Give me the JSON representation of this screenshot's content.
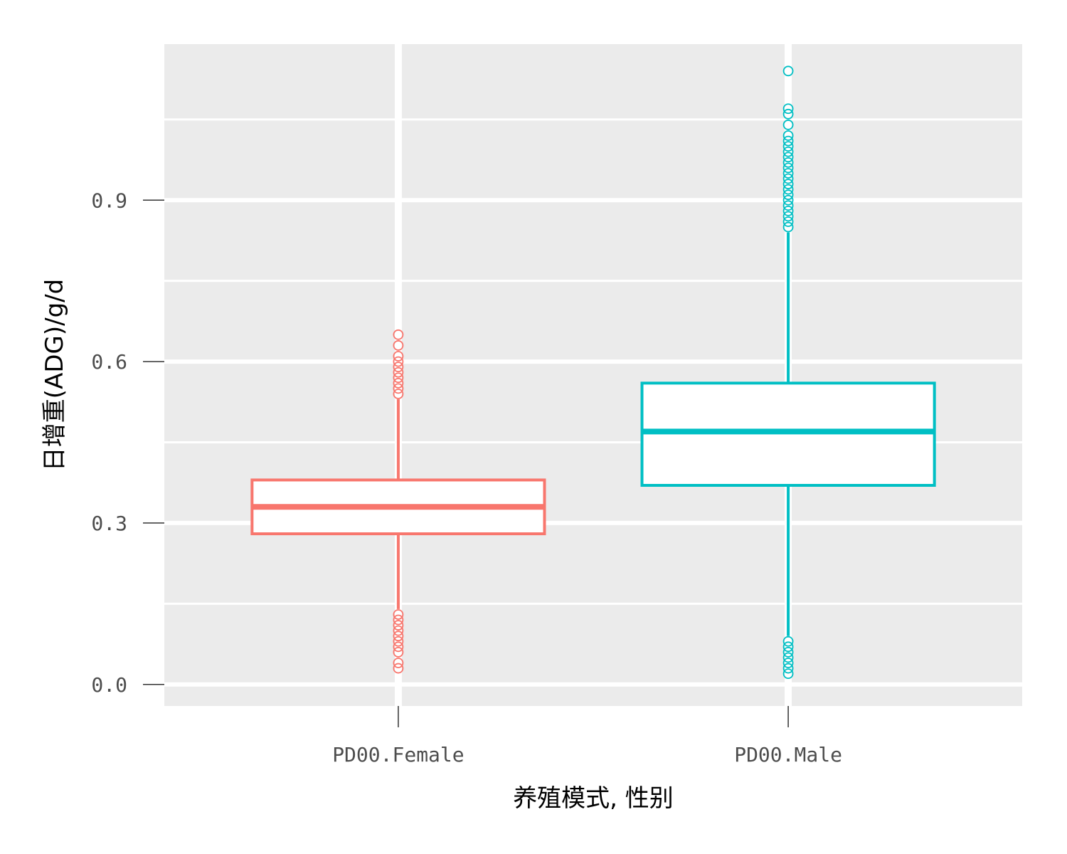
{
  "chart_data": {
    "type": "box",
    "xlabel": "养殖模式, 性别",
    "ylabel": "日增重(ADG)/g/d",
    "ylim": [
      -0.04,
      1.19
    ],
    "y_ticks": [
      0.0,
      0.3,
      0.6,
      0.9
    ],
    "y_tick_labels": [
      "0.0",
      "0.3",
      "0.6",
      "0.9"
    ],
    "grid": true,
    "legend": "none",
    "categories": [
      "PD00.Female",
      "PD00.Male"
    ],
    "series": [
      {
        "category": "PD00.Female",
        "color": "#F8766D",
        "q1": 0.28,
        "median": 0.33,
        "q3": 0.38,
        "whisker_low": 0.14,
        "whisker_high": 0.53,
        "outliers": [
          0.03,
          0.04,
          0.06,
          0.07,
          0.08,
          0.09,
          0.1,
          0.11,
          0.12,
          0.13,
          0.54,
          0.55,
          0.56,
          0.57,
          0.58,
          0.59,
          0.6,
          0.61,
          0.63,
          0.65
        ]
      },
      {
        "category": "PD00.Male",
        "color": "#00BFC4",
        "q1": 0.37,
        "median": 0.47,
        "q3": 0.56,
        "whisker_low": 0.09,
        "whisker_high": 0.84,
        "outliers": [
          0.02,
          0.03,
          0.04,
          0.05,
          0.06,
          0.07,
          0.08,
          0.85,
          0.86,
          0.87,
          0.88,
          0.89,
          0.9,
          0.91,
          0.92,
          0.93,
          0.94,
          0.95,
          0.96,
          0.97,
          0.98,
          0.99,
          1.0,
          1.01,
          1.02,
          1.04,
          1.06,
          1.07,
          1.14
        ]
      }
    ]
  },
  "colors": {
    "panel_background": "#EBEBEB",
    "grid": "#FFFFFF",
    "tick": "#333333",
    "box_fill": "#FFFFFF"
  }
}
